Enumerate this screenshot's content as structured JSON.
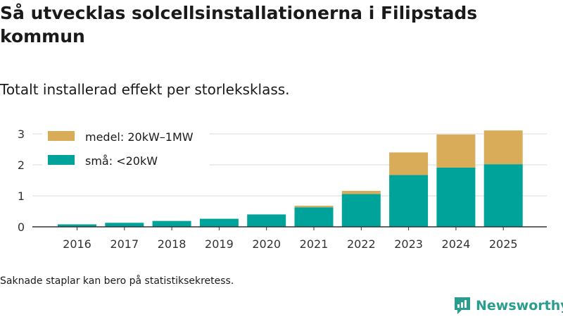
{
  "title": "Så utvecklas solcellsinstallationerna i Filipstads kommun",
  "subtitle": "Totalt installerad effekt per storleksklass.",
  "footnote": "Saknade staplar kan bero på statistiksekretess.",
  "brand": "Newsworthy",
  "colors": {
    "small": "#00a39a",
    "medium": "#d9ac59",
    "grid": "#d9d9d9",
    "axis": "#333333",
    "brand": "#2a9d8f"
  },
  "chart_data": {
    "type": "bar",
    "stacked": true,
    "categories": [
      "2016",
      "2017",
      "2018",
      "2019",
      "2020",
      "2021",
      "2022",
      "2023",
      "2024",
      "2025"
    ],
    "series": [
      {
        "name": "små: <20kW",
        "key": "small",
        "values": [
          0.08,
          0.13,
          0.19,
          0.26,
          0.4,
          0.63,
          1.06,
          1.67,
          1.91,
          2.02
        ]
      },
      {
        "name": "medel: 20kW–1MW",
        "key": "medium",
        "values": [
          0,
          0,
          0,
          0,
          0,
          0.05,
          0.1,
          0.73,
          1.07,
          1.09
        ]
      }
    ],
    "yticks": [
      0,
      1,
      2,
      3
    ],
    "ylim": [
      0,
      3.2
    ],
    "xlabel": "",
    "ylabel": "",
    "grid": true,
    "legend_position": "top-left"
  }
}
